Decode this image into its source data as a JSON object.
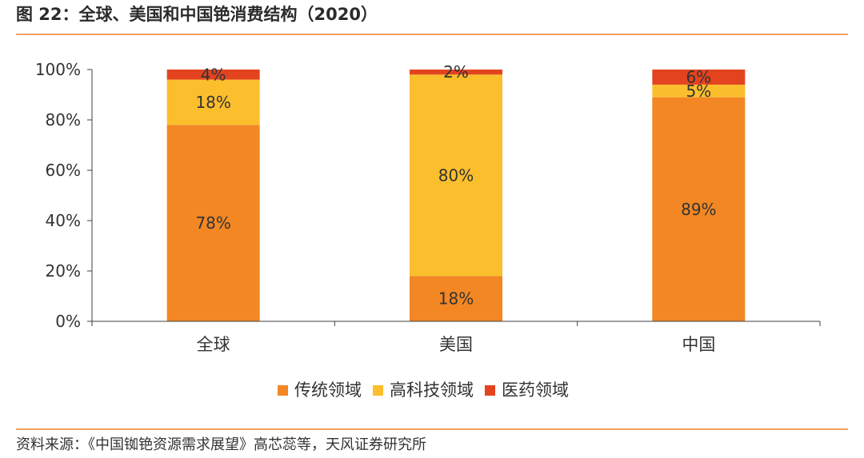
{
  "header": {
    "title": "图 22：全球、美国和中国铯消费结构（2020）"
  },
  "footer": {
    "source": "资料来源：《中国铷铯资源需求展望》高芯蕊等，天风证券研究所"
  },
  "colors": {
    "rule": "#F3A060",
    "axis": "#3F3F3F",
    "text": "#333333"
  },
  "chart_data": {
    "type": "bar",
    "stacked": true,
    "categories": [
      "全球",
      "美国",
      "中国"
    ],
    "series": [
      {
        "name": "传统领域",
        "color": "#F28724",
        "values": [
          78,
          18,
          89
        ],
        "labels": [
          "78%",
          "18%",
          "89%"
        ]
      },
      {
        "name": "高科技领域",
        "color": "#FBBE2C",
        "values": [
          18,
          80,
          5
        ],
        "labels": [
          "18%",
          "80%",
          "5%"
        ]
      },
      {
        "name": "医药领域",
        "color": "#E3441F",
        "values": [
          4,
          2,
          6
        ],
        "labels": [
          "4%",
          "2%",
          "6%"
        ]
      }
    ],
    "ylim": [
      0,
      100
    ],
    "yticks": [
      0,
      20,
      40,
      60,
      80,
      100
    ],
    "ytick_labels": [
      "0%",
      "20%",
      "40%",
      "60%",
      "80%",
      "100%"
    ],
    "grid": false,
    "legend": "bottom"
  }
}
